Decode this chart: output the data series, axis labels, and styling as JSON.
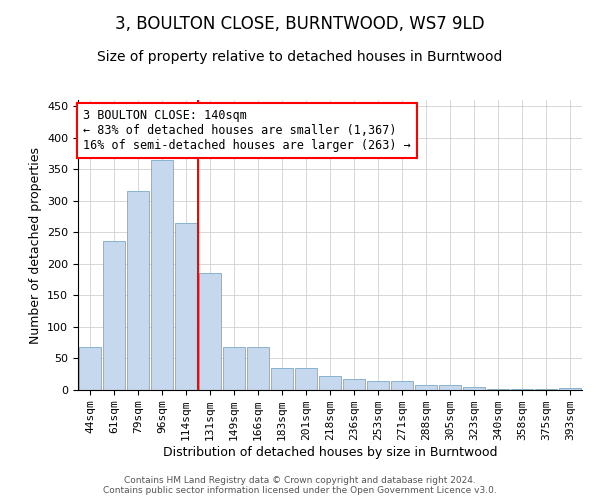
{
  "title": "3, BOULTON CLOSE, BURNTWOOD, WS7 9LD",
  "subtitle": "Size of property relative to detached houses in Burntwood",
  "xlabel": "Distribution of detached houses by size in Burntwood",
  "ylabel": "Number of detached properties",
  "footer_line1": "Contains HM Land Registry data © Crown copyright and database right 2024.",
  "footer_line2": "Contains public sector information licensed under the Open Government Licence v3.0.",
  "categories": [
    "44sqm",
    "61sqm",
    "79sqm",
    "96sqm",
    "114sqm",
    "131sqm",
    "149sqm",
    "166sqm",
    "183sqm",
    "201sqm",
    "218sqm",
    "236sqm",
    "253sqm",
    "271sqm",
    "288sqm",
    "305sqm",
    "323sqm",
    "340sqm",
    "358sqm",
    "375sqm",
    "393sqm"
  ],
  "values": [
    68,
    237,
    315,
    365,
    265,
    185,
    68,
    68,
    35,
    35,
    22,
    18,
    15,
    15,
    8,
    8,
    5,
    2,
    2,
    1,
    3
  ],
  "bar_color": "#c5d8ed",
  "bar_edge_color": "#7aaac8",
  "vline_index": 5,
  "vline_color": "red",
  "annotation_text_line1": "3 BOULTON CLOSE: 140sqm",
  "annotation_text_line2": "← 83% of detached houses are smaller (1,367)",
  "annotation_text_line3": "16% of semi-detached houses are larger (263) →",
  "ylim": [
    0,
    460
  ],
  "yticks": [
    0,
    50,
    100,
    150,
    200,
    250,
    300,
    350,
    400,
    450
  ],
  "bg_color": "#ffffff",
  "grid_color": "#c8c8c8",
  "title_fontsize": 12,
  "subtitle_fontsize": 10,
  "ylabel_fontsize": 9,
  "xlabel_fontsize": 9,
  "tick_fontsize": 8,
  "annot_fontsize": 8.5
}
